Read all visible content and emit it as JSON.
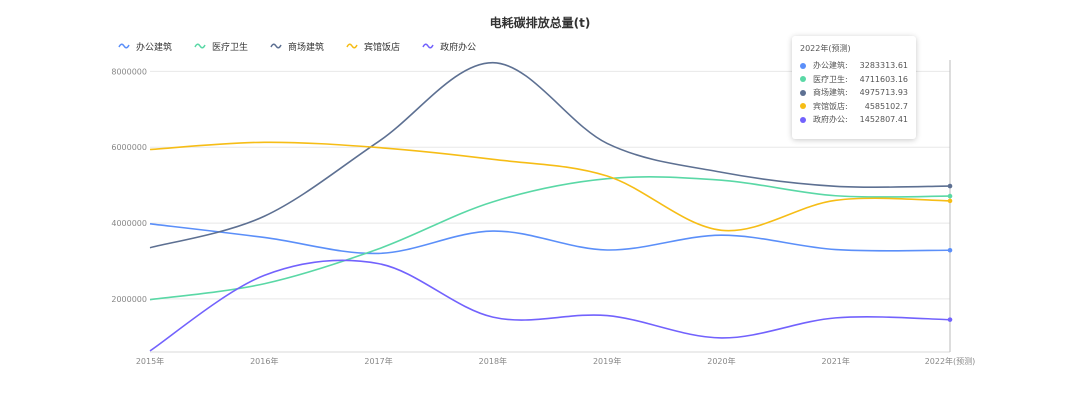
{
  "chart_data": {
    "type": "line",
    "title": "电耗碳排放总量(t)",
    "x": [
      "2015年",
      "2016年",
      "2017年",
      "2018年",
      "2019年",
      "2020年",
      "2021年",
      "2022年(预测)"
    ],
    "yticks": [
      "2000000",
      "4000000",
      "6000000",
      "8000000"
    ],
    "ylim": [
      600000,
      8300000
    ],
    "grid": true,
    "legend_position": "top-left",
    "series": [
      {
        "name": "办公建筑",
        "color": "#5B8FF9",
        "values": [
          3980000,
          3620000,
          3200000,
          3790000,
          3290000,
          3680000,
          3300000,
          3283313.61
        ]
      },
      {
        "name": "医疗卫生",
        "color": "#5AD8A6",
        "values": [
          1980000,
          2400000,
          3320000,
          4560000,
          5170000,
          5130000,
          4720000,
          4711603.16
        ]
      },
      {
        "name": "商场建筑",
        "color": "#5D7092",
        "values": [
          3350000,
          4180000,
          6150000,
          8230000,
          6100000,
          5340000,
          4970000,
          4975713.93
        ]
      },
      {
        "name": "宾馆饭店",
        "color": "#F6BD16",
        "values": [
          5940000,
          6130000,
          5990000,
          5680000,
          5240000,
          3810000,
          4600000,
          4585102.7
        ]
      },
      {
        "name": "政府办公",
        "color": "#7262FD",
        "values": [
          630000,
          2620000,
          2930000,
          1520000,
          1560000,
          970000,
          1500000,
          1452807.41
        ]
      }
    ],
    "tooltip": {
      "header": "2022年(预测)",
      "rows": [
        {
          "label": "办公建筑:",
          "value": "3283313.61"
        },
        {
          "label": "医疗卫生:",
          "value": "4711603.16"
        },
        {
          "label": "商场建筑:",
          "value": "4975713.93"
        },
        {
          "label": "宾馆饭店:",
          "value": "4585102.7"
        },
        {
          "label": "政府办公:",
          "value": "1452807.41"
        }
      ]
    }
  }
}
